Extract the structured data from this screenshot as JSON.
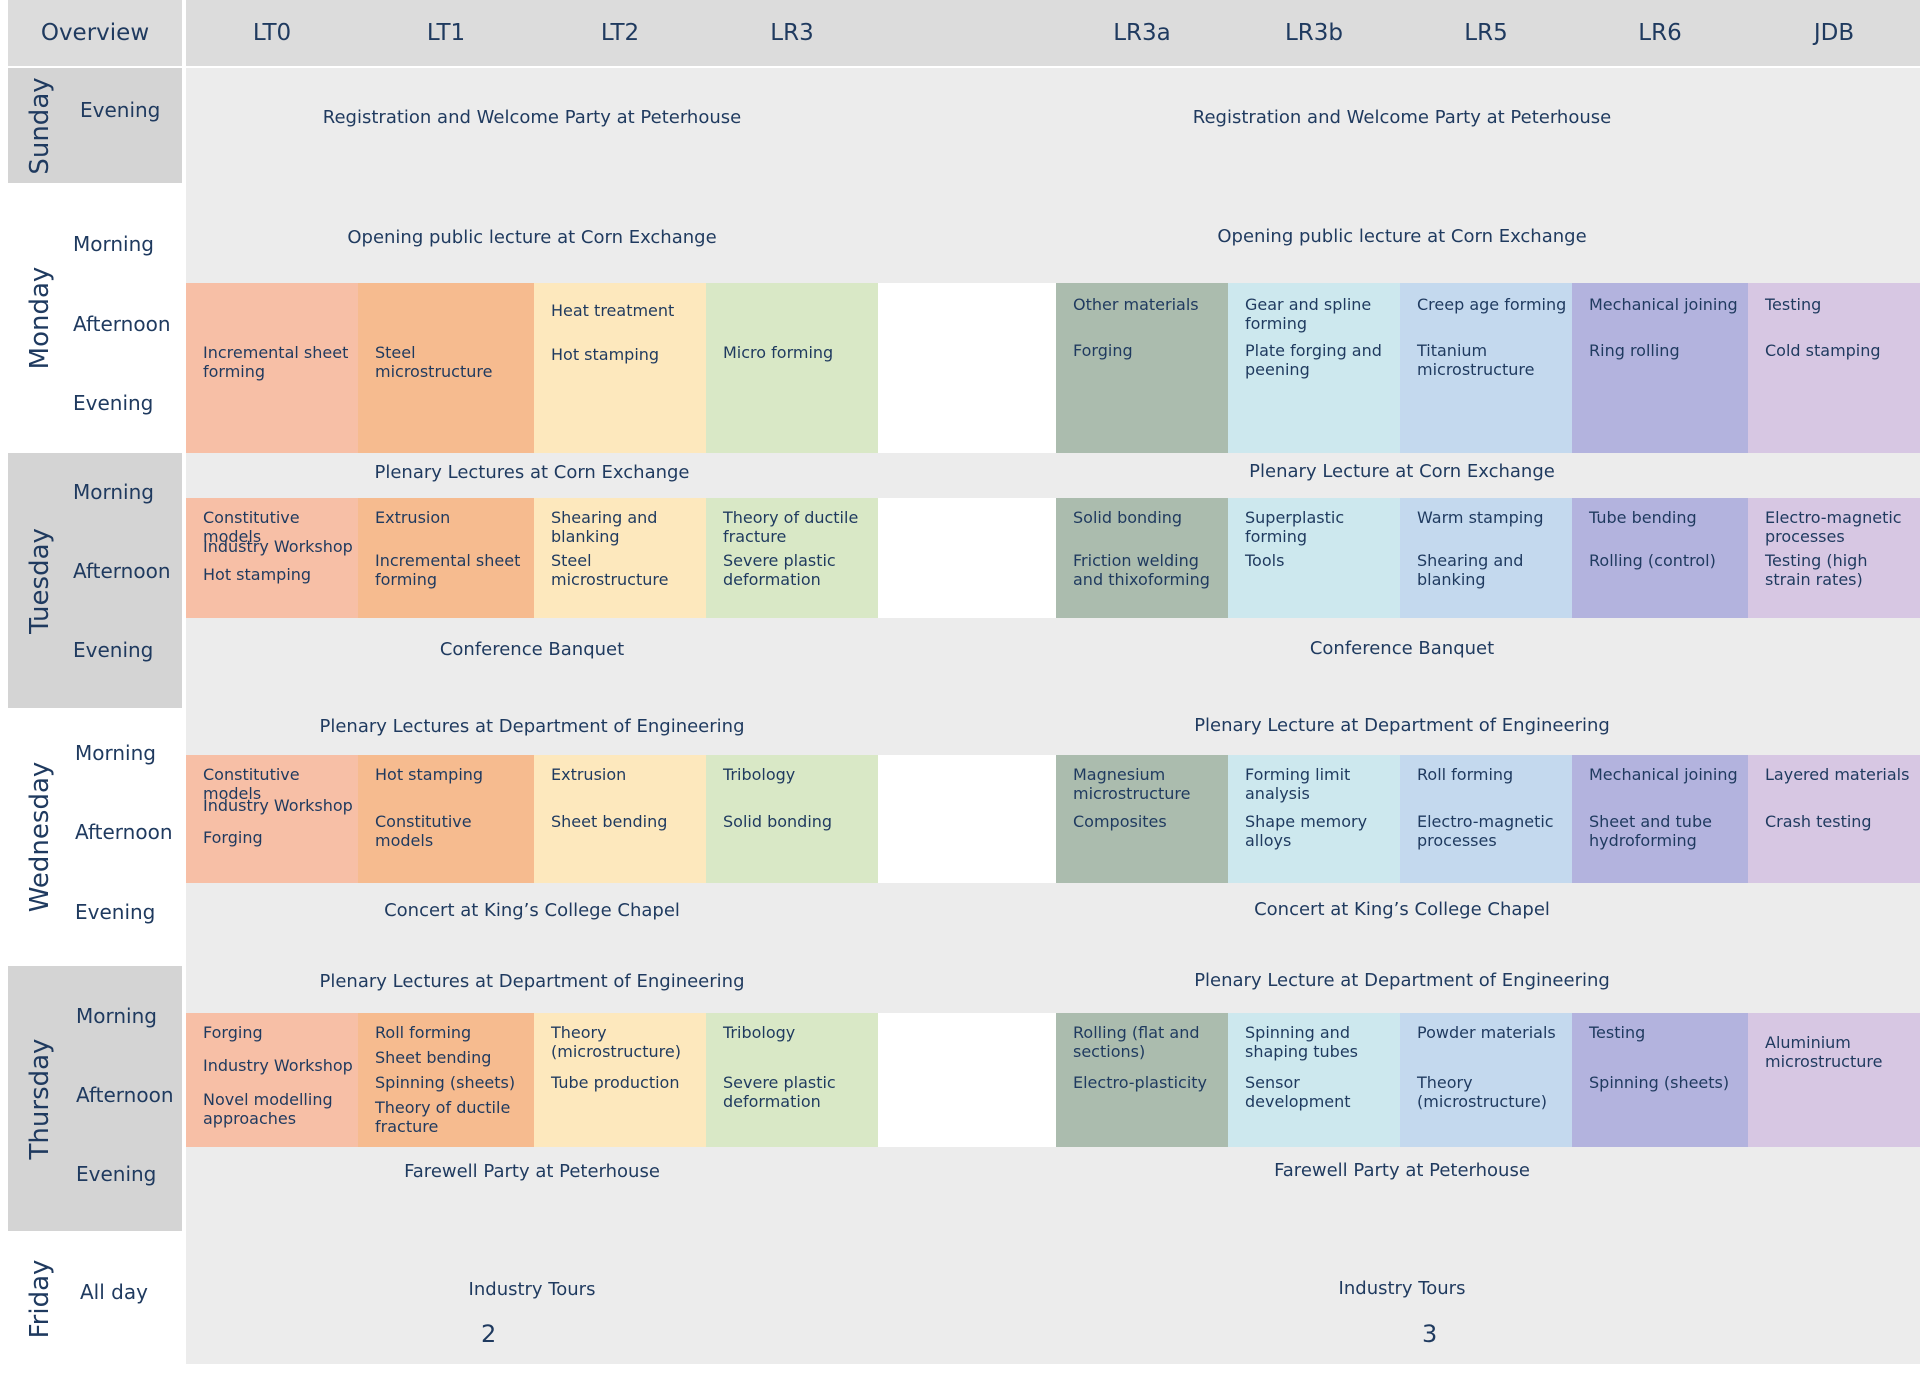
{
  "header": {
    "title": "Overview",
    "rooms": [
      "LT0",
      "LT1",
      "LT2",
      "LR3",
      "",
      "LR3a",
      "LR3b",
      "LR5",
      "LR6",
      "JDB"
    ]
  },
  "days": [
    {
      "name": "Sunday",
      "slots": [
        "Evening"
      ]
    },
    {
      "name": "Monday",
      "slots": [
        "Morning",
        "Afternoon",
        "Evening"
      ]
    },
    {
      "name": "Tuesday",
      "slots": [
        "Morning",
        "Afternoon",
        "Evening"
      ]
    },
    {
      "name": "Wednesday",
      "slots": [
        "Morning",
        "Afternoon",
        "Evening"
      ]
    },
    {
      "name": "Thursday",
      "slots": [
        "Morning",
        "Afternoon",
        "Evening"
      ]
    },
    {
      "name": "Friday",
      "slots": [
        "All day"
      ]
    }
  ],
  "bands": [
    {
      "left": "Registration and Welcome Party at Peterhouse",
      "right": "Registration and Welcome Party at Peterhouse"
    },
    {
      "left": "Opening public lecture at Corn Exchange",
      "right": "Opening public lecture at Corn Exchange"
    },
    {
      "left": "Plenary Lectures at Corn Exchange",
      "right": "Plenary Lecture at Corn Exchange"
    },
    {
      "left": "Conference Banquet",
      "right": "Conference Banquet"
    },
    {
      "left": "Plenary Lectures at Department of Engineering",
      "right": "Plenary Lecture at Department of Engineering"
    },
    {
      "left": "Concert at King’s College Chapel",
      "right": "Concert at King’s College Chapel"
    },
    {
      "left": "Plenary Lectures at Department of Engineering",
      "right": "Plenary Lecture at Department of Engineering"
    },
    {
      "left": "Farewell Party at Peterhouse",
      "right": "Farewell Party at Peterhouse"
    },
    {
      "left": "Industry Tours",
      "right": "Industry Tours",
      "left_number": "2",
      "right_number": "3"
    }
  ],
  "sessions": {
    "monday": [
      [
        "Incremental sheet forming"
      ],
      [
        "Steel microstructure"
      ],
      [
        "Heat treatment",
        "Hot stamping"
      ],
      [
        "Micro forming"
      ],
      [],
      [
        "Other materials",
        "Forging"
      ],
      [
        "Gear and spline forming",
        "Plate forging and peening"
      ],
      [
        "Creep age forming",
        "Titanium microstructure"
      ],
      [
        "Mechanical joining",
        "Ring rolling"
      ],
      [
        "Testing",
        "Cold stamping"
      ]
    ],
    "tuesday": [
      [
        "Constitutive models",
        "Industry Workshop",
        "Hot stamping"
      ],
      [
        "Extrusion",
        "Incremental sheet forming"
      ],
      [
        "Shearing and blanking",
        "Steel microstructure"
      ],
      [
        "Theory of ductile fracture",
        "Severe plastic deformation"
      ],
      [],
      [
        "Solid bonding",
        "Friction welding and thixoforming"
      ],
      [
        "Superplastic forming",
        "Tools"
      ],
      [
        "Warm stamping",
        "Shearing and blanking"
      ],
      [
        "Tube bending",
        "Rolling (control)"
      ],
      [
        "Electro-magnetic processes",
        "Testing (high strain rates)"
      ]
    ],
    "wednesday": [
      [
        "Constitutive models",
        "Industry Workshop",
        "Forging"
      ],
      [
        "Hot stamping",
        "Constitutive models"
      ],
      [
        "Extrusion",
        "Sheet bending"
      ],
      [
        "Tribology",
        "Solid bonding"
      ],
      [],
      [
        "Magnesium microstructure",
        "Composites"
      ],
      [
        "Forming limit analysis",
        "Shape memory alloys"
      ],
      [
        "Roll forming",
        "Electro-magnetic processes"
      ],
      [
        "Mechanical joining",
        "Sheet and tube hydroforming"
      ],
      [
        "Layered materials",
        "Crash testing"
      ]
    ],
    "thursday": [
      [
        "Forging",
        "Industry Workshop",
        "Novel modelling approaches"
      ],
      [
        "Roll forming",
        "Sheet bending",
        "Spinning (sheets)",
        "Theory of ductile fracture"
      ],
      [
        "Theory (microstructure)",
        "Tube production"
      ],
      [
        "Tribology",
        "Severe plastic deformation"
      ],
      [],
      [
        "Rolling (flat and sections)",
        "Electro-plasticity"
      ],
      [
        "Spinning and shaping tubes",
        "Sensor development"
      ],
      [
        "Powder materials",
        "Theory (microstructure)"
      ],
      [
        "Testing",
        "Spinning (sheets)"
      ],
      [
        "Aluminium microstructure"
      ]
    ]
  }
}
